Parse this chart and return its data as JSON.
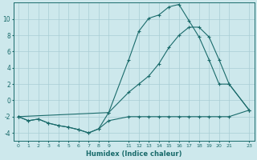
{
  "xlabel": "Humidex (Indice chaleur)",
  "bg_color": "#cde8ec",
  "grid_color": "#a8cdd4",
  "line_color": "#1a6b6b",
  "line1_x": [
    0,
    1,
    2,
    3,
    4,
    5,
    6,
    7,
    8,
    9,
    11,
    12,
    13,
    14,
    15,
    16,
    17,
    18,
    19,
    20,
    21,
    23
  ],
  "line1_y": [
    -2,
    -2.5,
    -2.3,
    -2.8,
    -3.1,
    -3.3,
    -3.6,
    -4.0,
    -3.5,
    -2.5,
    -2.0,
    -2.0,
    -2.0,
    -2.0,
    -2.0,
    -2.0,
    -2.0,
    -2.0,
    -2.0,
    -2.0,
    -2.0,
    -1.2
  ],
  "line2_x": [
    0,
    1,
    2,
    3,
    4,
    5,
    6,
    7,
    8,
    9,
    11,
    12,
    13,
    14,
    15,
    16,
    17,
    18,
    19,
    20,
    21,
    23
  ],
  "line2_y": [
    -2,
    -2.5,
    -2.3,
    -2.8,
    -3.1,
    -3.3,
    -3.6,
    -4.0,
    -3.5,
    -1.5,
    5.0,
    8.5,
    10.1,
    10.5,
    11.5,
    11.8,
    9.8,
    7.8,
    5.0,
    2.0,
    2.0,
    -1.2
  ],
  "line3_x": [
    0,
    9,
    11,
    12,
    13,
    14,
    15,
    16,
    17,
    18,
    19,
    20,
    21,
    23
  ],
  "line3_y": [
    -2,
    -1.5,
    1.0,
    2.0,
    3.0,
    4.5,
    6.5,
    8.0,
    9.0,
    9.0,
    7.8,
    5.0,
    2.0,
    -1.2
  ],
  "xlim": [
    -0.5,
    23.5
  ],
  "ylim": [
    -5,
    12
  ],
  "yticks": [
    -4,
    -2,
    0,
    2,
    4,
    6,
    8,
    10
  ],
  "xticks": [
    0,
    1,
    2,
    3,
    4,
    5,
    6,
    7,
    8,
    9,
    11,
    12,
    13,
    14,
    15,
    16,
    17,
    18,
    19,
    20,
    21,
    23
  ]
}
